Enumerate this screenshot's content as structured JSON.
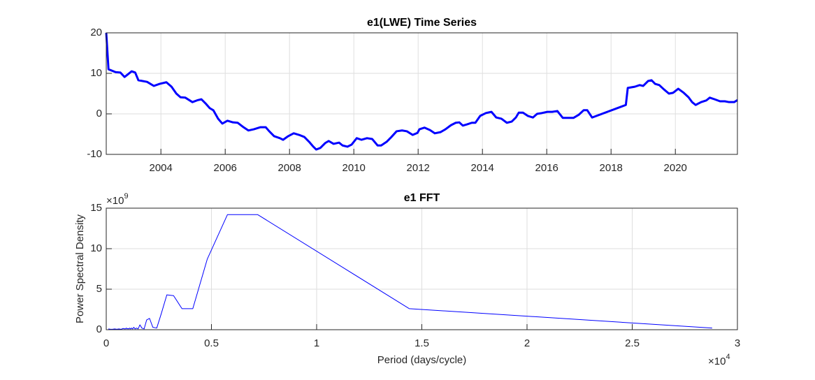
{
  "chart_data": [
    {
      "type": "line",
      "title": "e1(LWE) Time Series",
      "color": "#0000ff",
      "grid": true,
      "x": [
        2002.3,
        2002.37,
        2002.59,
        2002.74,
        2002.87,
        2002.98,
        2003.09,
        2003.2,
        2003.3,
        2003.57,
        2003.78,
        2003.96,
        2004.17,
        2004.33,
        2004.48,
        2004.61,
        2004.76,
        2004.98,
        2005.15,
        2005.26,
        2005.41,
        2005.52,
        2005.63,
        2005.78,
        2005.91,
        2006.07,
        2006.24,
        2006.39,
        2006.57,
        2006.72,
        2006.89,
        2007.09,
        2007.26,
        2007.37,
        2007.52,
        2007.7,
        2007.8,
        2007.96,
        2008.13,
        2008.3,
        2008.46,
        2008.61,
        2008.74,
        2008.83,
        2008.96,
        2009.11,
        2009.22,
        2009.37,
        2009.54,
        2009.65,
        2009.8,
        2009.93,
        2010.09,
        2010.24,
        2010.41,
        2010.57,
        2010.74,
        2010.85,
        2011.02,
        2011.17,
        2011.33,
        2011.5,
        2011.65,
        2011.83,
        2011.98,
        2012.04,
        2012.2,
        2012.37,
        2012.52,
        2012.7,
        2012.85,
        2013.02,
        2013.17,
        2013.28,
        2013.39,
        2013.52,
        2013.67,
        2013.78,
        2013.93,
        2014.11,
        2014.28,
        2014.43,
        2014.59,
        2014.76,
        2014.91,
        2015.04,
        2015.13,
        2015.26,
        2015.41,
        2015.57,
        2015.7,
        2015.85,
        2016.02,
        2016.17,
        2016.33,
        2016.5,
        2016.65,
        2016.83,
        2017.0,
        2017.15,
        2017.26,
        2017.41,
        2018.46,
        2018.52,
        2018.74,
        2018.89,
        2019.0,
        2019.15,
        2019.26,
        2019.37,
        2019.5,
        2019.65,
        2019.8,
        2019.93,
        2020.09,
        2020.26,
        2020.41,
        2020.52,
        2020.63,
        2020.8,
        2020.96,
        2021.07,
        2021.22,
        2021.39,
        2021.54,
        2021.67,
        2021.83,
        2021.93
      ],
      "values": [
        20,
        11,
        10.3,
        10.2,
        9.1,
        9.8,
        10.5,
        10.2,
        8.3,
        7.9,
        6.9,
        7.4,
        7.8,
        6.7,
        5.0,
        4.1,
        4.0,
        2.9,
        3.4,
        3.6,
        2.4,
        1.4,
        0.9,
        -1.2,
        -2.4,
        -1.7,
        -2.1,
        -2.2,
        -3.3,
        -4.1,
        -3.8,
        -3.3,
        -3.3,
        -4.3,
        -5.5,
        -6.0,
        -6.4,
        -5.5,
        -4.8,
        -5.2,
        -5.7,
        -6.9,
        -8.1,
        -8.8,
        -8.4,
        -7.2,
        -6.7,
        -7.4,
        -7.1,
        -7.8,
        -8.1,
        -7.6,
        -6.0,
        -6.4,
        -6.0,
        -6.2,
        -7.8,
        -7.8,
        -6.9,
        -5.7,
        -4.3,
        -4.1,
        -4.3,
        -5.2,
        -4.7,
        -3.8,
        -3.4,
        -4.0,
        -4.8,
        -4.5,
        -3.8,
        -2.8,
        -2.2,
        -2.1,
        -2.9,
        -2.6,
        -2.2,
        -2.2,
        -0.5,
        0.2,
        0.5,
        -0.9,
        -1.2,
        -2.2,
        -1.9,
        -0.9,
        0.3,
        0.3,
        -0.5,
        -0.9,
        0.0,
        0.2,
        0.5,
        0.5,
        0.7,
        -1.0,
        -1.0,
        -1.0,
        -0.2,
        0.9,
        0.9,
        -0.9,
        2.2,
        6.4,
        6.7,
        7.1,
        6.9,
        8.1,
        8.3,
        7.4,
        7.1,
        6.0,
        5.0,
        5.2,
        6.2,
        5.2,
        4.1,
        2.9,
        2.2,
        2.9,
        3.3,
        4.0,
        3.6,
        3.1,
        3.1,
        2.9,
        2.9,
        3.4
      ],
      "xlim": [
        2002.3,
        2021.93
      ],
      "xticks": [
        2004,
        2006,
        2008,
        2010,
        2012,
        2014,
        2016,
        2018,
        2020
      ],
      "ylim": [
        -10,
        20
      ],
      "yticks": [
        -10,
        0,
        10,
        20
      ]
    },
    {
      "type": "line",
      "title": "e1 FFT",
      "color": "#0000ff",
      "grid": true,
      "xlabel": "Period (days/cycle)",
      "ylabel": "Power Spectral Density",
      "x_multiplier": "×10",
      "x_multiplier_power": "4",
      "y_multiplier": "×10",
      "y_multiplier_power": "9",
      "x": [
        28800,
        14400,
        7200,
        5760,
        4800,
        4114,
        3600,
        3200,
        2880,
        2618,
        2400,
        2215,
        2057,
        1920,
        1800,
        1694,
        1600,
        1516,
        1440,
        1371,
        1309,
        1252,
        1200,
        1152,
        1108,
        1067,
        1029,
        993,
        960,
        900,
        800,
        700,
        600,
        500,
        400,
        300,
        200,
        100
      ],
      "values": [
        200000000,
        2600000000,
        14200000000,
        14200000000,
        8700000000,
        2600000000,
        2600000000,
        4200000000,
        4300000000,
        2000000000,
        200000000,
        300000000,
        1400000000,
        1200000000,
        100000000,
        200000000,
        600000000,
        100000000,
        200000000,
        100000000,
        300000000,
        100000000,
        200000000,
        100000000,
        200000000,
        100000000,
        150000000,
        100000000,
        200000000,
        100000000,
        150000000,
        50000000,
        100000000,
        50000000,
        100000000,
        50000000,
        50000000,
        100000000
      ],
      "xlim": [
        0,
        30000
      ],
      "xticks": [
        0,
        {
          "value": 5000,
          "label": "0.5"
        },
        {
          "value": 10000,
          "label": "1"
        },
        {
          "value": 15000,
          "label": "1.5"
        },
        {
          "value": 20000,
          "label": "2"
        },
        {
          "value": 25000,
          "label": "2.5"
        },
        {
          "value": 30000,
          "label": "3"
        }
      ],
      "ylim": [
        0,
        15000000000
      ],
      "yticks": [
        0,
        {
          "value": 5000000000,
          "label": "5"
        },
        {
          "value": 10000000000,
          "label": "10"
        },
        {
          "value": 15000000000,
          "label": "15"
        }
      ]
    }
  ]
}
